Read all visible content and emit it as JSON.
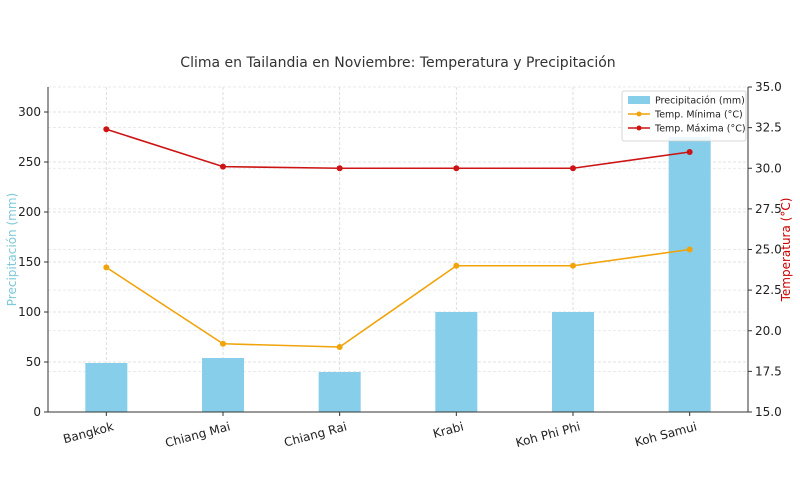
{
  "chart_data": {
    "type": "bar+line",
    "title": "Clima en Tailandia en Noviembre: Temperatura y Precipitación",
    "categories": [
      "Bangkok",
      "Chiang Mai",
      "Chiang Rai",
      "Krabi",
      "Koh Phi Phi",
      "Koh Samui"
    ],
    "left_axis": {
      "label": "Precipitación (mm)",
      "ylim": [
        0,
        325
      ],
      "ticks": [
        0,
        50,
        100,
        150,
        200,
        250,
        300
      ],
      "color": "#7fc8d8"
    },
    "right_axis": {
      "label": "Temperatura (°C)",
      "ylim": [
        15.0,
        35.0
      ],
      "ticks": [
        "15.0",
        "17.5",
        "20.0",
        "22.5",
        "25.0",
        "27.5",
        "30.0",
        "32.5",
        "35.0"
      ],
      "color": "#cc0000"
    },
    "series": [
      {
        "name": "Precipitación (mm)",
        "kind": "bar",
        "axis": "left",
        "color": "#87ceeb",
        "values": [
          49,
          54,
          40,
          100,
          100,
          275
        ]
      },
      {
        "name": "Temp. Mínima (°C)",
        "kind": "line",
        "axis": "right",
        "color": "#f0a30a",
        "values": [
          23.9,
          19.2,
          19.0,
          24.0,
          24.0,
          25.0
        ]
      },
      {
        "name": "Temp. Máxima (°C)",
        "kind": "line",
        "axis": "right",
        "color": "#cc1414",
        "values": [
          32.4,
          30.1,
          30.0,
          30.0,
          30.0,
          31.0
        ]
      }
    ],
    "grid": true,
    "legend_position": "top-right"
  }
}
